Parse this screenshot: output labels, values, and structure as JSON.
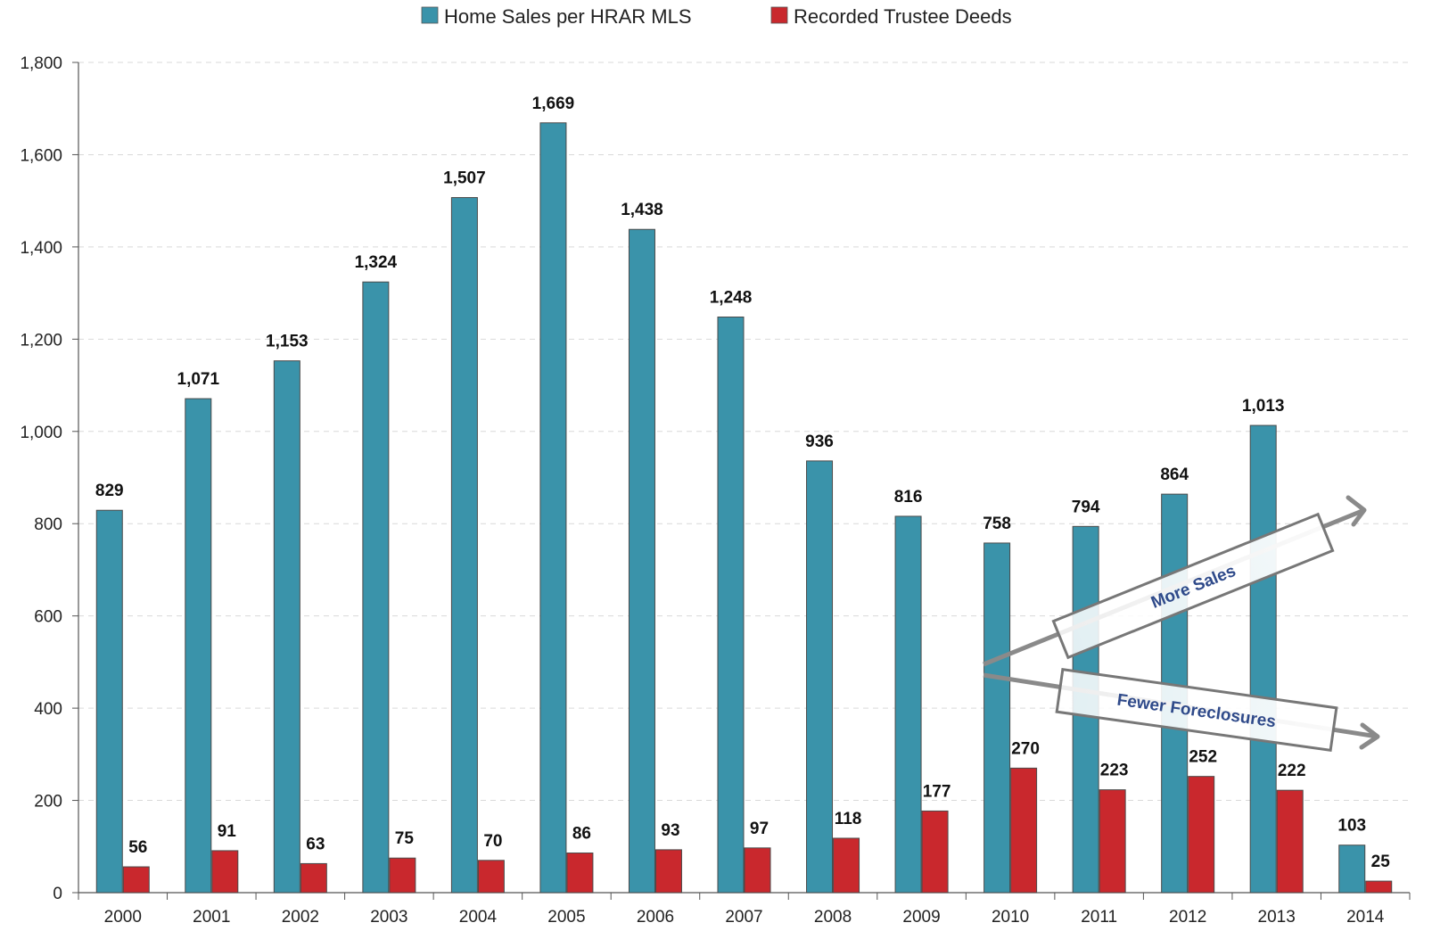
{
  "chart_data": {
    "type": "bar",
    "categories": [
      "2000",
      "2001",
      "2002",
      "2003",
      "2004",
      "2005",
      "2006",
      "2007",
      "2008",
      "2009",
      "2010",
      "2011",
      "2012",
      "2013",
      "2014"
    ],
    "series": [
      {
        "name": "Home Sales per HRAR MLS",
        "color": "#3a93aa",
        "values": [
          829,
          1071,
          1153,
          1324,
          1507,
          1669,
          1438,
          1248,
          936,
          816,
          758,
          794,
          864,
          1013,
          103
        ],
        "labels": [
          "829",
          "1,071",
          "1,153",
          "1,324",
          "1,507",
          "1,669",
          "1,438",
          "1,248",
          "936",
          "816",
          "758",
          "794",
          "864",
          "1,013",
          "103"
        ]
      },
      {
        "name": "Recorded Trustee Deeds",
        "color": "#c9282d",
        "values": [
          56,
          91,
          63,
          75,
          70,
          86,
          93,
          97,
          118,
          177,
          270,
          223,
          252,
          222,
          25
        ],
        "labels": [
          "56",
          "91",
          "63",
          "75",
          "70",
          "86",
          "93",
          "97",
          "118",
          "177",
          "270",
          "223",
          "252",
          "222",
          "25"
        ]
      }
    ],
    "ylim": [
      0,
      1800
    ],
    "yticks": [
      0,
      200,
      400,
      600,
      800,
      1000,
      1200,
      1400,
      1600,
      1800
    ],
    "ytick_labels": [
      "0",
      "200",
      "400",
      "600",
      "800",
      "1,000",
      "1,200",
      "1,400",
      "1,600",
      "1,800"
    ],
    "grid": true,
    "legend_position": "top",
    "annotations": [
      {
        "text": "More Sales",
        "kind": "arrow-up"
      },
      {
        "text": "Fewer Foreclosures",
        "kind": "arrow-down"
      }
    ]
  }
}
